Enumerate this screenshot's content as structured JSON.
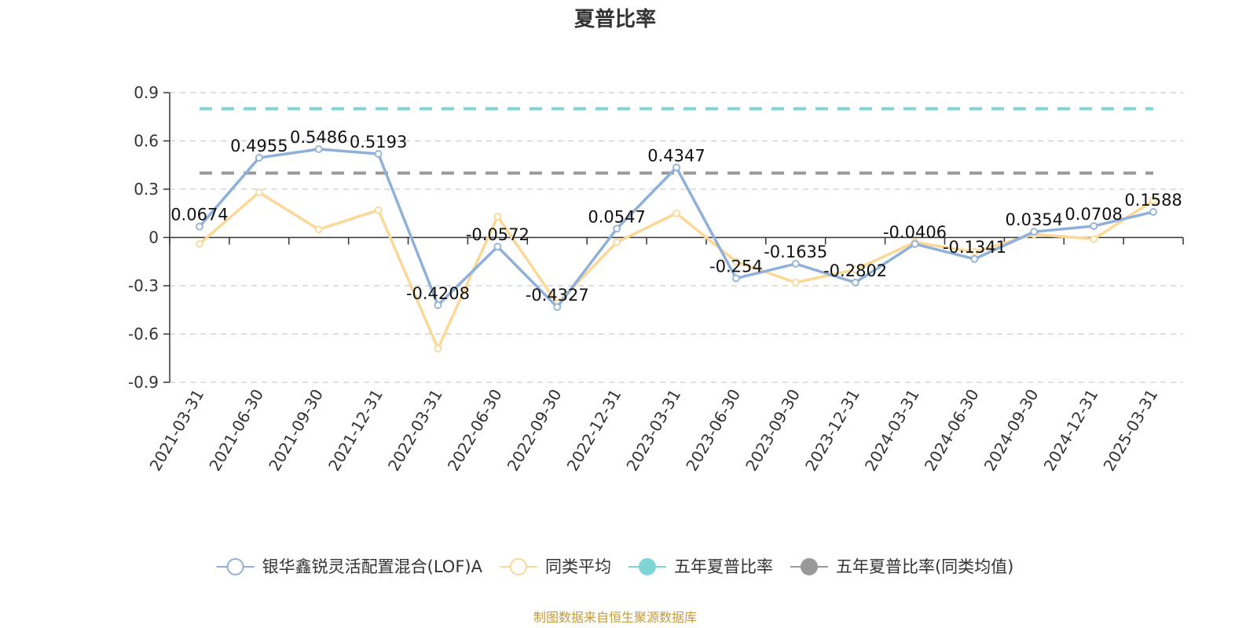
{
  "chart_data": {
    "type": "line",
    "title": "夏普比率",
    "categories": [
      "2021-03-31",
      "2021-06-30",
      "2021-09-30",
      "2021-12-31",
      "2022-03-31",
      "2022-06-30",
      "2022-09-30",
      "2022-12-31",
      "2023-03-31",
      "2023-06-30",
      "2023-09-30",
      "2023-12-31",
      "2024-03-31",
      "2024-06-30",
      "2024-09-30",
      "2024-12-31",
      "2025-03-31"
    ],
    "ylim": [
      -0.9,
      0.9
    ],
    "yticks": [
      "0.9",
      "0.6",
      "0.3",
      "0",
      "-0.3",
      "-0.6",
      "-0.9"
    ],
    "ytick_values": [
      0.9,
      0.6,
      0.3,
      0,
      -0.3,
      -0.6,
      -0.9
    ],
    "grid": true,
    "legend_position": "bottom",
    "series": [
      {
        "name": "银华鑫锐灵活配置混合(LOF)A",
        "color": "#8eb0da",
        "values": [
          0.0674,
          0.4955,
          0.5486,
          0.5193,
          -0.4208,
          -0.0572,
          -0.4327,
          0.0547,
          0.4347,
          -0.254,
          -0.1635,
          -0.2802,
          -0.0406,
          -0.1341,
          0.0354,
          0.0708,
          0.1588
        ],
        "labels": [
          "0.0674",
          "0.4955",
          "0.5486",
          "0.5193",
          "-0.4208",
          "-0.0572",
          "-0.4327",
          "0.0547",
          "0.4347",
          "-0.254",
          "-0.1635",
          "-0.2802",
          "-0.0406",
          "-0.1341",
          "0.0354",
          "0.0708",
          "0.1588"
        ]
      },
      {
        "name": "同类平均",
        "color": "#fbd896",
        "values": [
          -0.04,
          0.28,
          0.05,
          0.17,
          -0.69,
          0.13,
          -0.41,
          -0.03,
          0.15,
          -0.15,
          -0.28,
          -0.2,
          -0.03,
          -0.09,
          0.02,
          -0.01,
          0.23
        ]
      }
    ],
    "reference_lines": [
      {
        "name": "五年夏普比率",
        "value": 0.8,
        "color": "#7fd4d6"
      },
      {
        "name": "五年夏普比率(同类均值)",
        "value": 0.4,
        "color": "#999999"
      }
    ]
  },
  "legend": [
    {
      "label": "银华鑫锐灵活配置混合(LOF)A",
      "icon": "hollow-circle",
      "color": "#8eb0da"
    },
    {
      "label": "同类平均",
      "icon": "hollow-circle",
      "color": "#fbd896"
    },
    {
      "label": "五年夏普比率",
      "icon": "filled-circle",
      "color": "#7fd4d6"
    },
    {
      "label": "五年夏普比率(同类均值)",
      "icon": "filled-circle",
      "color": "#999999"
    }
  ],
  "source_text": "制图数据来自恒生聚源数据库"
}
